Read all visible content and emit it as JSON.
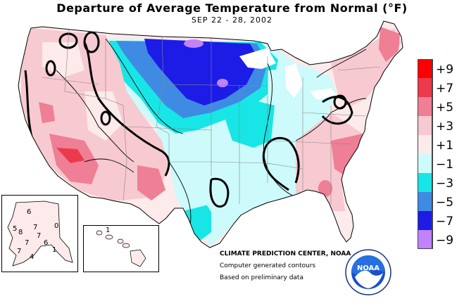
{
  "title": "Departure of Average Temperature from Normal (°F)",
  "subtitle": "SEP 22 - 28, 2002",
  "legend": {
    "items": [
      {
        "label": "+9",
        "color": "#ff0000"
      },
      {
        "label": "+7",
        "color": "#ec3a4c"
      },
      {
        "label": "+5",
        "color": "#ee7f95"
      },
      {
        "label": "+3",
        "color": "#f7c9d0"
      },
      {
        "label": "+1",
        "color": "#fdeaea"
      },
      {
        "label": "−1",
        "color": "#cdfafa"
      },
      {
        "label": "−3",
        "color": "#18e5e5"
      },
      {
        "label": "−5",
        "color": "#3f8be3"
      },
      {
        "label": "−7",
        "color": "#1c1ce6"
      },
      {
        "label": "−9",
        "color": "#c083fb"
      }
    ]
  },
  "credits": {
    "line1": "CLIMATE PREDICTION CENTER, NOAA",
    "line2": "Computer generated contours",
    "line3": "Based on preliminary data"
  },
  "logo": {
    "text": "NOAA"
  },
  "insets": {
    "alaska_labels": [
      "6",
      "5",
      "8",
      "7",
      "7",
      "7",
      "6",
      "7",
      "1",
      "4",
      "0"
    ],
    "hawaii_labels": [
      "1"
    ]
  }
}
